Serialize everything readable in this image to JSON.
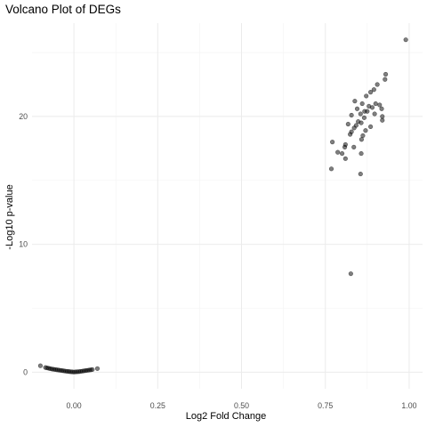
{
  "chart_data": {
    "type": "scatter",
    "title": "Volcano Plot of DEGs",
    "xlabel": "Log2 Fold Change",
    "ylabel": "-Log10 p-value",
    "xlim": [
      -0.125,
      1.04
    ],
    "ylim": [
      -1.3,
      27.3
    ],
    "x_ticks": [
      0.0,
      0.25,
      0.5,
      0.75,
      1.0
    ],
    "x_tick_labels": [
      "0.00",
      "0.25",
      "0.50",
      "0.75",
      "1.00"
    ],
    "y_ticks": [
      0,
      10,
      20
    ],
    "y_tick_labels": [
      "0",
      "10",
      "20"
    ],
    "grid": true,
    "legend": "none",
    "point_color": "#000000",
    "series": [
      {
        "values": [
          {
            "x": -0.1,
            "y": 0.5
          },
          {
            "x": -0.085,
            "y": 0.36
          },
          {
            "x": -0.08,
            "y": 0.33
          },
          {
            "x": -0.075,
            "y": 0.3
          },
          {
            "x": -0.07,
            "y": 0.27
          },
          {
            "x": -0.065,
            "y": 0.24
          },
          {
            "x": -0.06,
            "y": 0.22
          },
          {
            "x": -0.055,
            "y": 0.2
          },
          {
            "x": -0.05,
            "y": 0.18
          },
          {
            "x": -0.045,
            "y": 0.16
          },
          {
            "x": -0.04,
            "y": 0.14
          },
          {
            "x": -0.035,
            "y": 0.12
          },
          {
            "x": -0.03,
            "y": 0.1
          },
          {
            "x": -0.025,
            "y": 0.08
          },
          {
            "x": -0.02,
            "y": 0.06
          },
          {
            "x": -0.015,
            "y": 0.05
          },
          {
            "x": -0.01,
            "y": 0.03
          },
          {
            "x": -0.005,
            "y": 0.02
          },
          {
            "x": 0.0,
            "y": 0.01
          },
          {
            "x": 0.005,
            "y": 0.02
          },
          {
            "x": 0.01,
            "y": 0.03
          },
          {
            "x": 0.015,
            "y": 0.04
          },
          {
            "x": 0.02,
            "y": 0.06
          },
          {
            "x": 0.025,
            "y": 0.08
          },
          {
            "x": 0.03,
            "y": 0.1
          },
          {
            "x": 0.035,
            "y": 0.12
          },
          {
            "x": 0.04,
            "y": 0.14
          },
          {
            "x": 0.045,
            "y": 0.16
          },
          {
            "x": 0.05,
            "y": 0.18
          },
          {
            "x": 0.055,
            "y": 0.2
          },
          {
            "x": 0.07,
            "y": 0.28
          },
          {
            "x": 0.99,
            "y": 26.0
          },
          {
            "x": 0.93,
            "y": 23.3
          },
          {
            "x": 0.928,
            "y": 22.9
          },
          {
            "x": 0.905,
            "y": 22.5
          },
          {
            "x": 0.895,
            "y": 22.1
          },
          {
            "x": 0.885,
            "y": 21.9
          },
          {
            "x": 0.872,
            "y": 21.6
          },
          {
            "x": 0.838,
            "y": 21.2
          },
          {
            "x": 0.86,
            "y": 21.0
          },
          {
            "x": 0.9,
            "y": 21.0
          },
          {
            "x": 0.912,
            "y": 20.9
          },
          {
            "x": 0.88,
            "y": 20.8
          },
          {
            "x": 0.89,
            "y": 20.7
          },
          {
            "x": 0.845,
            "y": 20.6
          },
          {
            "x": 0.918,
            "y": 20.6
          },
          {
            "x": 0.867,
            "y": 20.4
          },
          {
            "x": 0.875,
            "y": 20.4
          },
          {
            "x": 0.855,
            "y": 20.2
          },
          {
            "x": 0.897,
            "y": 20.2
          },
          {
            "x": 0.828,
            "y": 20.1
          },
          {
            "x": 0.92,
            "y": 20.0
          },
          {
            "x": 0.866,
            "y": 19.9
          },
          {
            "x": 0.92,
            "y": 19.7
          },
          {
            "x": 0.848,
            "y": 19.6
          },
          {
            "x": 0.857,
            "y": 19.5
          },
          {
            "x": 0.818,
            "y": 19.4
          },
          {
            "x": 0.842,
            "y": 19.3
          },
          {
            "x": 0.885,
            "y": 19.2
          },
          {
            "x": 0.836,
            "y": 19.1
          },
          {
            "x": 0.87,
            "y": 18.9
          },
          {
            "x": 0.828,
            "y": 18.8
          },
          {
            "x": 0.824,
            "y": 18.6
          },
          {
            "x": 0.862,
            "y": 18.5
          },
          {
            "x": 0.858,
            "y": 18.2
          },
          {
            "x": 0.771,
            "y": 18.0
          },
          {
            "x": 0.81,
            "y": 17.8
          },
          {
            "x": 0.808,
            "y": 17.6
          },
          {
            "x": 0.835,
            "y": 17.6
          },
          {
            "x": 0.787,
            "y": 17.2
          },
          {
            "x": 0.8,
            "y": 17.1
          },
          {
            "x": 0.857,
            "y": 17.1
          },
          {
            "x": 0.81,
            "y": 16.7
          },
          {
            "x": 0.768,
            "y": 15.9
          },
          {
            "x": 0.855,
            "y": 15.5
          },
          {
            "x": 0.826,
            "y": 7.7
          }
        ]
      }
    ]
  }
}
